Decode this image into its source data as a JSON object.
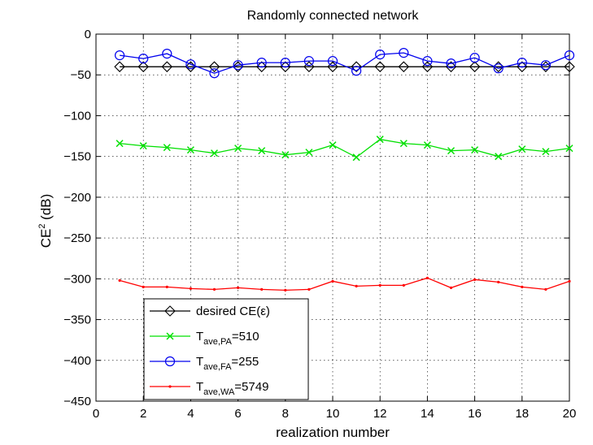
{
  "chart_data": {
    "type": "line",
    "title": "Randomly connected network",
    "xlabel": "realization number",
    "ylabel": {
      "base": "CE",
      "sup": "2",
      "rest": " (dB)"
    },
    "xlim": [
      0,
      20
    ],
    "ylim": [
      -450,
      0
    ],
    "xticks": [
      0,
      2,
      4,
      6,
      8,
      10,
      12,
      14,
      16,
      18,
      20
    ],
    "yticks": [
      0,
      -50,
      -100,
      -150,
      -200,
      -250,
      -300,
      -350,
      -400,
      -450
    ],
    "grid": true,
    "legend_position": "bottom-left",
    "x": [
      1,
      2,
      3,
      4,
      5,
      6,
      7,
      8,
      9,
      10,
      11,
      12,
      13,
      14,
      15,
      16,
      17,
      18,
      19,
      20
    ],
    "series": [
      {
        "key": "desired",
        "legend": {
          "text": "desired CE(ε)"
        },
        "color": "#000000",
        "marker": "diamond",
        "values": [
          -40,
          -40,
          -40,
          -40,
          -40,
          -40,
          -40,
          -40,
          -40,
          -40,
          -40,
          -40,
          -40,
          -40,
          -40,
          -40,
          -40,
          -40,
          -40,
          -40
        ]
      },
      {
        "key": "pa",
        "legend": {
          "base": "T",
          "sub": "ave,PA",
          "rest": "=510"
        },
        "color": "#00e000",
        "marker": "x",
        "values": [
          -134,
          -137,
          -139,
          -142,
          -146,
          -140,
          -143,
          -148,
          -145,
          -136,
          -151,
          -129,
          -134,
          -136,
          -143,
          -142,
          -150,
          -141,
          -144,
          -140
        ]
      },
      {
        "key": "fa",
        "legend": {
          "base": "T",
          "sub": "ave,FA",
          "rest": "=255"
        },
        "color": "#0000ee",
        "marker": "circle",
        "values": [
          -26,
          -30,
          -24,
          -37,
          -48,
          -38,
          -35,
          -35,
          -33,
          -33,
          -45,
          -25,
          -23,
          -33,
          -36,
          -29,
          -42,
          -35,
          -38,
          -26
        ]
      },
      {
        "key": "wa",
        "legend": {
          "base": "T",
          "sub": "ave,WA",
          "rest": "=5749"
        },
        "color": "#ff0000",
        "marker": "dot",
        "values": [
          -302,
          -310,
          -310,
          -312,
          -313,
          -311,
          -313,
          -314,
          -313,
          -303,
          -309,
          -308,
          -308,
          -299,
          -311,
          -301,
          -304,
          -310,
          -313,
          -303
        ]
      }
    ]
  }
}
